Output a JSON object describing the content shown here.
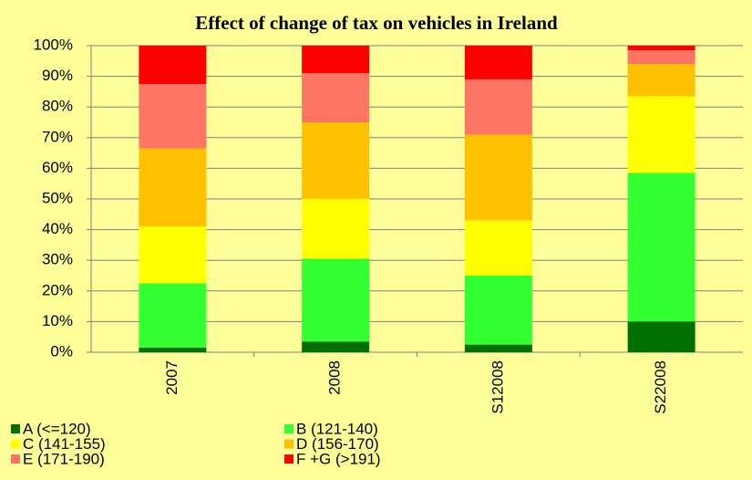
{
  "chart_data": {
    "type": "stacked_bar",
    "title": "Effect of change of tax on vehicles in Ireland",
    "categories": [
      "2007",
      "2008",
      "S12008",
      "S22008"
    ],
    "series": [
      {
        "name": "A (<=120)",
        "color": "#007000",
        "values": [
          1.5,
          3.5,
          2.5,
          10
        ]
      },
      {
        "name": "B (121-140)",
        "color": "#33ff33",
        "values": [
          21,
          27,
          22.5,
          48.5
        ]
      },
      {
        "name": "C (141-155)",
        "color": "#ffff00",
        "values": [
          18.5,
          19.5,
          18,
          25
        ]
      },
      {
        "name": "D (156-170)",
        "color": "#ffc000",
        "values": [
          25.5,
          25,
          28,
          10.5
        ]
      },
      {
        "name": "E (171-190)",
        "color": "#ff7563",
        "values": [
          21,
          16,
          18,
          4.5
        ]
      },
      {
        "name": "F +G (>191)",
        "color": "#ff0000",
        "values": [
          12.5,
          9,
          11,
          1.5
        ]
      }
    ],
    "ylim": [
      0,
      100
    ],
    "yticks": [
      {
        "value": 0,
        "label": "0%"
      },
      {
        "value": 10,
        "label": "10%"
      },
      {
        "value": 20,
        "label": "20%"
      },
      {
        "value": 30,
        "label": "30%"
      },
      {
        "value": 40,
        "label": "40%"
      },
      {
        "value": 50,
        "label": "50%"
      },
      {
        "value": 60,
        "label": "60%"
      },
      {
        "value": 70,
        "label": "70%"
      },
      {
        "value": 80,
        "label": "80%"
      },
      {
        "value": 90,
        "label": "90%"
      },
      {
        "value": 100,
        "label": "100%"
      }
    ],
    "grid": true
  }
}
